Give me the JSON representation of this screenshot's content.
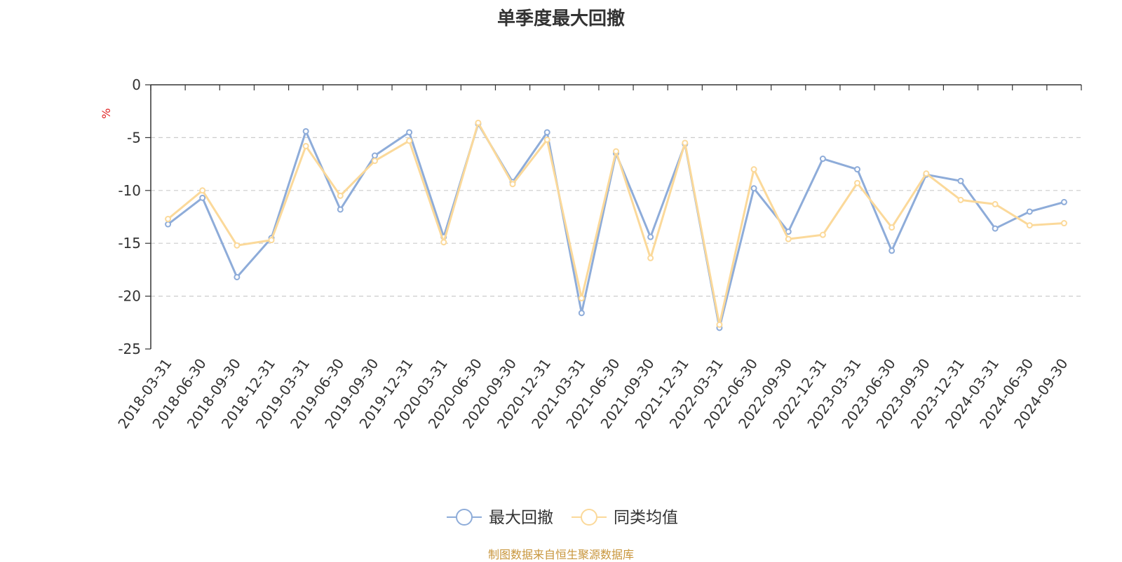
{
  "chart_data": {
    "type": "line",
    "title": "单季度最大回撤",
    "ylabel": "%",
    "ylim": [
      -25,
      0
    ],
    "yticks": [
      0,
      -5,
      -10,
      -15,
      -20,
      -25
    ],
    "grid": true,
    "legend_position": "bottom-center",
    "categories": [
      "2018-03-31",
      "2018-06-30",
      "2018-09-30",
      "2018-12-31",
      "2019-03-31",
      "2019-06-30",
      "2019-09-30",
      "2019-12-31",
      "2020-03-31",
      "2020-06-30",
      "2020-09-30",
      "2020-12-31",
      "2021-03-31",
      "2021-06-30",
      "2021-09-30",
      "2021-12-31",
      "2022-03-31",
      "2022-06-30",
      "2022-09-30",
      "2022-12-31",
      "2023-03-31",
      "2023-06-30",
      "2023-09-30",
      "2023-12-31",
      "2024-03-31",
      "2024-06-30",
      "2024-09-30"
    ],
    "series": [
      {
        "name": "最大回撤",
        "color": "#8eacd9",
        "values": [
          -13.2,
          -10.7,
          -18.2,
          -14.5,
          -4.4,
          -11.8,
          -6.7,
          -4.5,
          -14.4,
          -3.7,
          -9.2,
          -4.5,
          -21.6,
          -6.5,
          -14.4,
          -5.6,
          -23.0,
          -9.8,
          -13.9,
          -7.0,
          -8.0,
          -15.7,
          -8.5,
          -9.1,
          -13.6,
          -12.0,
          -11.1
        ]
      },
      {
        "name": "同类均值",
        "color": "#fbd99a",
        "values": [
          -12.7,
          -10.0,
          -15.2,
          -14.7,
          -5.8,
          -10.5,
          -7.2,
          -5.3,
          -14.9,
          -3.6,
          -9.4,
          -5.2,
          -20.2,
          -6.3,
          -16.4,
          -5.5,
          -22.7,
          -8.0,
          -14.6,
          -14.2,
          -9.3,
          -13.5,
          -8.4,
          -10.9,
          -11.3,
          -13.3,
          -13.1
        ]
      }
    ],
    "source_note": "制图数据来自恒生聚源数据库"
  }
}
